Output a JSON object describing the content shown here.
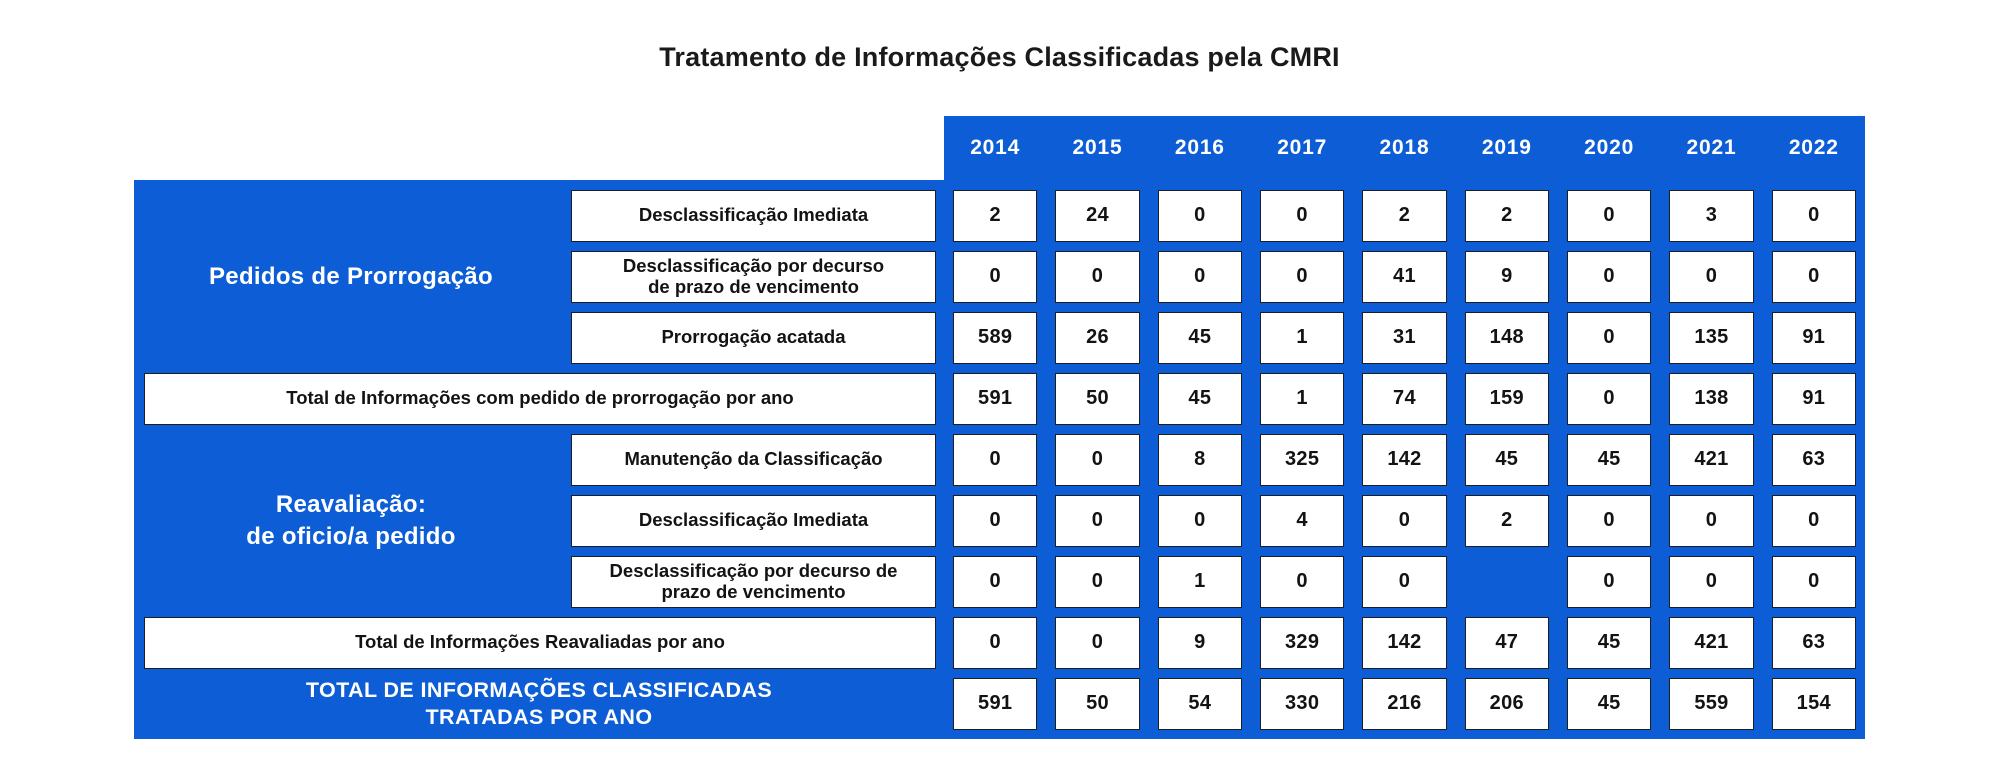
{
  "title": "Tratamento de Informações Classificadas pela CMRI",
  "colors": {
    "primary_blue": "#0C5DD6",
    "cell_background": "#FFFFFF",
    "text_dark": "#1D1D1B",
    "header_text": "#FFFFFF"
  },
  "chart_data": {
    "type": "table",
    "title": "Tratamento de Informações Classificadas pela CMRI",
    "years": [
      "2014",
      "2015",
      "2016",
      "2017",
      "2018",
      "2019",
      "2020",
      "2021",
      "2022"
    ],
    "groups": [
      {
        "label": "Pedidos de Prorrogação"
      },
      {
        "label": "Reavaliação:\nde oficio/a pedido"
      }
    ],
    "rows": [
      {
        "type": "data",
        "group": "Pedidos de Prorrogação",
        "label": "Desclassificação Imediata",
        "values": [
          2,
          24,
          0,
          0,
          2,
          2,
          0,
          3,
          0
        ]
      },
      {
        "type": "data",
        "group": "Pedidos de Prorrogação",
        "label": "Desclassificação por decurso\nde prazo de vencimento",
        "values": [
          0,
          0,
          0,
          0,
          41,
          9,
          0,
          0,
          0
        ]
      },
      {
        "type": "data",
        "group": "Pedidos de Prorrogação",
        "label": "Prorrogação acatada",
        "values": [
          589,
          26,
          45,
          1,
          31,
          148,
          0,
          135,
          91
        ]
      },
      {
        "type": "subtotal",
        "group": null,
        "label": "Total de Informações com pedido de prorrogação por ano",
        "values": [
          591,
          50,
          45,
          1,
          74,
          159,
          0,
          138,
          91
        ]
      },
      {
        "type": "data",
        "group": "Reavaliação: de oficio/a pedido",
        "label": "Manutenção da Classificação",
        "values": [
          0,
          0,
          8,
          325,
          142,
          45,
          45,
          421,
          63
        ]
      },
      {
        "type": "data",
        "group": "Reavaliação: de oficio/a pedido",
        "label": "Desclassificação Imediata",
        "values": [
          0,
          0,
          0,
          4,
          0,
          2,
          0,
          0,
          0
        ]
      },
      {
        "type": "data",
        "group": "Reavaliação: de oficio/a pedido",
        "label": "Desclassificação por decurso de\nprazo de vencimento",
        "values": [
          0,
          0,
          1,
          0,
          0,
          null,
          0,
          0,
          0
        ]
      },
      {
        "type": "subtotal",
        "group": null,
        "label": "Total de Informações Reavaliadas por ano",
        "values": [
          0,
          0,
          9,
          329,
          142,
          47,
          45,
          421,
          63
        ]
      },
      {
        "type": "grand_total",
        "group": null,
        "label": "TOTAL DE INFORMAÇÕES CLASSIFICADAS\nTRATADAS POR ANO",
        "values": [
          591,
          50,
          54,
          330,
          216,
          206,
          45,
          559,
          154
        ]
      }
    ]
  }
}
